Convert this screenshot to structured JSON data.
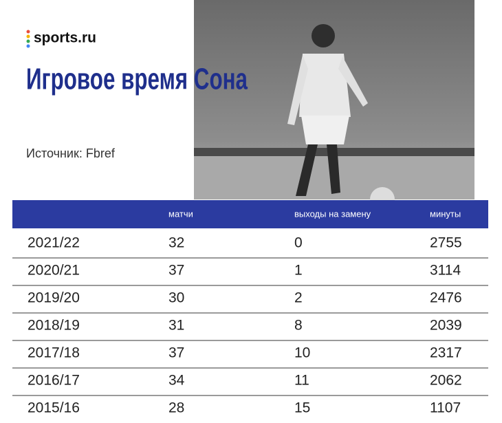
{
  "logo": "sports.ru",
  "title": "Игровое время Сона",
  "source": "Источник: Fbref",
  "table": {
    "columns": [
      "матчи",
      "выходы на замену",
      "минуты"
    ],
    "rows": [
      [
        "2021/22",
        32,
        0,
        2755
      ],
      [
        "2020/21",
        37,
        1,
        3114
      ],
      [
        "2019/20",
        30,
        2,
        2476
      ],
      [
        "2018/19",
        31,
        8,
        2039
      ],
      [
        "2017/18",
        37,
        10,
        2317
      ],
      [
        "2016/17",
        34,
        11,
        2062
      ],
      [
        "2015/16",
        28,
        15,
        1107
      ]
    ]
  }
}
